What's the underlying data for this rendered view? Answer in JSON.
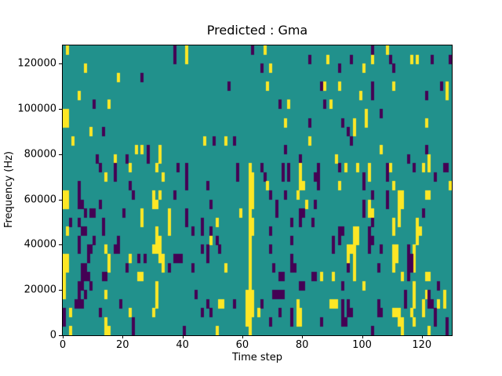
{
  "title": "Predicted : Gma",
  "background_color": "#ffffff",
  "text_color": "#000000",
  "chart_data": {
    "type": "heatmap",
    "title": "Predicted : Gma",
    "xlabel": "Time step",
    "ylabel": "Frequency (Hz)",
    "xlim": [
      0,
      130
    ],
    "ylim": [
      0,
      128000
    ],
    "xticks": [
      0,
      20,
      40,
      60,
      80,
      100,
      120
    ],
    "yticks": [
      0,
      20000,
      40000,
      60000,
      80000,
      100000,
      120000
    ],
    "grid": false,
    "legend_position": "none",
    "cols": 130,
    "rows": 32,
    "row_order": "top-to-bottom",
    "freq_bin_hz": 4000,
    "colors": {
      "low": "#440154",
      "mid": "#21918c",
      "high": "#fde725"
    },
    "value_levels": {
      "low": 0,
      "mid": 0.5,
      "high": 1
    },
    "default_level": "mid",
    "rows_sparse": [
      {
        "y": [
          1,
          41,
          67,
          108
        ],
        "p": [
          37,
          63,
          103
        ]
      },
      {
        "y": [
          41,
          88,
          103,
          116,
          118
        ],
        "p": [
          37,
          82,
          96,
          109,
          123,
          129
        ]
      },
      {
        "y": [
          7,
          69,
          100
        ],
        "p": [
          66,
          92,
          110
        ]
      },
      {
        "y": [
          18
        ],
        "p": [
          26
        ]
      },
      {
        "y": [
          68,
          87,
          92,
          110,
          128
        ],
        "p": [
          55,
          86,
          103,
          126
        ]
      },
      {
        "y": [
          5,
          99,
          128
        ],
        "p": [
          103,
          121
        ]
      },
      {
        "y": [
          15,
          75,
          89
        ],
        "p": [
          10,
          72,
          87
        ]
      },
      {
        "y": [
          0,
          1,
          101
        ],
        "p": [
          106
        ]
      },
      {
        "y": [
          0,
          1,
          74,
          97,
          101,
          121
        ],
        "p": [
          82,
          93
        ]
      },
      {
        "y": [
          9,
          97
        ],
        "p": [
          13,
          95
        ]
      },
      {
        "y": [
          3,
          47,
          54,
          82
        ],
        "p": [
          50,
          57,
          96
        ]
      },
      {
        "y": [
          24,
          26,
          32,
          106
        ],
        "p": [
          28,
          74,
          121
        ]
      },
      {
        "y": [
          17,
          32,
          91,
          122
        ],
        "p": [
          11,
          21,
          28,
          79,
          115
        ]
      },
      {
        "y": [
          22,
          31,
          62,
          79,
          94,
          98,
          102,
          109,
          120,
          122
        ],
        "p": [
          12,
          17,
          38,
          41,
          58,
          66,
          73,
          75,
          85,
          92,
          108,
          117,
          127,
          128
        ]
      },
      {
        "y": [
          14,
          33,
          62,
          63,
          79,
          102
        ],
        "p": [
          17,
          41,
          58,
          67,
          73,
          75,
          84,
          85,
          100,
          108,
          124
        ]
      },
      {
        "y": [
          62,
          63,
          68,
          79,
          80,
          92,
          110,
          129
        ],
        "p": [
          5,
          22,
          41,
          48,
          85,
          100
        ]
      },
      {
        "y": [
          0,
          1,
          30,
          32,
          62,
          63,
          78,
          112,
          113,
          121,
          122
        ],
        "p": [
          5,
          23,
          37,
          69,
          74,
          103,
          108
        ]
      },
      {
        "y": [
          0,
          1,
          30,
          31,
          62,
          63,
          81,
          102,
          112,
          113
        ],
        "p": [
          5,
          6,
          12,
          49,
          71,
          84,
          100,
          108
        ]
      },
      {
        "y": [
          26,
          35,
          59,
          62,
          102,
          103,
          112
        ],
        "p": [
          7,
          9,
          10,
          20,
          41,
          71,
          79,
          80,
          100,
          120
        ]
      },
      {
        "y": [
          26,
          35,
          51,
          62,
          63,
          110,
          112,
          118
        ],
        "p": [
          2,
          5,
          13,
          41,
          46,
          76,
          79,
          83,
          103
        ]
      },
      {
        "y": [
          1,
          31,
          35,
          62,
          63,
          97,
          98,
          110,
          118,
          119
        ],
        "p": [
          6,
          7,
          13,
          43,
          46,
          49,
          69,
          92,
          93,
          102
        ]
      },
      {
        "y": [
          31,
          32,
          49,
          62,
          97,
          98,
          118
        ],
        "p": [
          5,
          10,
          18,
          51,
          76,
          90,
          92,
          102,
          103
        ]
      },
      {
        "y": [
          14,
          30,
          31,
          32,
          62,
          95,
          96,
          97,
          110,
          111,
          117
        ],
        "p": [
          5,
          8,
          9,
          17,
          18,
          46,
          48,
          52,
          69,
          90,
          102,
          106,
          115
        ]
      },
      {
        "y": [
          0,
          1,
          15,
          22,
          32,
          33,
          62,
          95,
          97,
          110,
          111,
          117
        ],
        "p": [
          8,
          25,
          27,
          37,
          38,
          39,
          48,
          76,
          115,
          116
        ]
      },
      {
        "y": [
          0,
          1,
          15,
          33,
          54,
          62,
          97,
          110,
          117
        ],
        "p": [
          6,
          7,
          21,
          35,
          43,
          70,
          76,
          77,
          95,
          105,
          115,
          116
        ]
      },
      {
        "y": [
          0,
          25,
          26,
          62,
          86,
          90,
          97,
          113,
          121,
          122
        ],
        "p": [
          6,
          7,
          8,
          13,
          14,
          72,
          73,
          83,
          84,
          115
        ]
      },
      {
        "y": [
          0,
          31,
          62,
          100,
          117
        ],
        "p": [
          5,
          6,
          9,
          79,
          80,
          93,
          125
        ]
      },
      {
        "y": [
          0,
          14,
          31,
          61,
          62,
          63,
          117,
          121,
          127
        ],
        "p": [
          5,
          7,
          44,
          70,
          71,
          72,
          73,
          114,
          122
        ]
      },
      {
        "y": [
          31,
          52,
          53,
          61,
          62,
          63,
          78,
          89,
          90,
          91,
          117,
          120,
          125,
          127
        ],
        "p": [
          4,
          5,
          6,
          19,
          48,
          57,
          66,
          93,
          95,
          105,
          114,
          122,
          123
        ]
      },
      {
        "y": [
          2,
          22,
          30,
          61,
          62,
          63,
          65,
          78,
          79,
          110,
          111,
          112,
          116,
          120
        ],
        "p": [
          0,
          12,
          46,
          49,
          72,
          76,
          93,
          95,
          96,
          105,
          106,
          124
        ]
      },
      {
        "y": [
          14,
          61,
          62,
          78,
          79,
          112,
          113,
          117
        ],
        "p": [
          0,
          23,
          69,
          76,
          86,
          93,
          94,
          124,
          128
        ]
      },
      {
        "y": [
          2,
          14,
          15,
          51,
          62,
          113,
          122
        ],
        "p": [
          23,
          40,
          103,
          128
        ]
      }
    ]
  },
  "axes_geometry_note": "plot area left 80, top 58, width 496, height 370"
}
